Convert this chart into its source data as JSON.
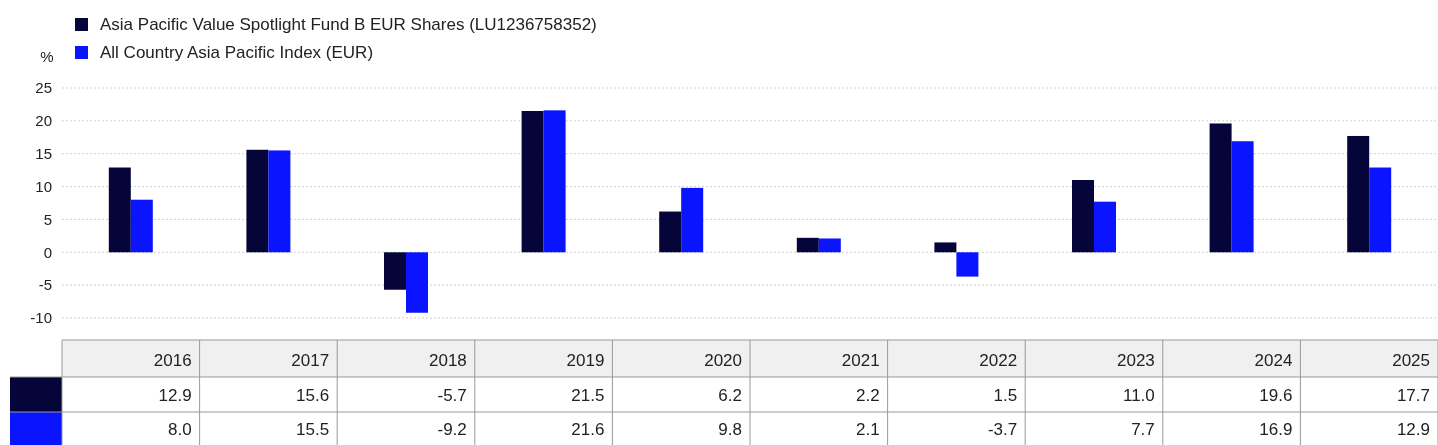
{
  "chart_data": {
    "type": "bar",
    "ylabel": "%",
    "categories": [
      "2016",
      "2017",
      "2018",
      "2019",
      "2020",
      "2021",
      "2022",
      "2023",
      "2024",
      "2025"
    ],
    "series": [
      {
        "name": "Asia Pacific Value Spotlight Fund B EUR Shares (LU1236758352)",
        "color": "#05053a",
        "values": [
          12.9,
          15.6,
          -5.7,
          21.5,
          6.2,
          2.2,
          1.5,
          11.0,
          19.6,
          17.7
        ],
        "value_labels": [
          "12.9",
          "15.6",
          "-5.7",
          "21.5",
          "6.2",
          "2.2",
          "1.5",
          "11.0",
          "19.6",
          "17.7"
        ]
      },
      {
        "name": "All Country Asia Pacific Index (EUR)",
        "color": "#0a14ff",
        "values": [
          8.0,
          15.5,
          -9.2,
          21.6,
          9.8,
          2.1,
          -3.7,
          7.7,
          16.9,
          12.9
        ],
        "value_labels": [
          "8.0",
          "15.5",
          "-9.2",
          "21.6",
          "9.8",
          "2.1",
          "-3.7",
          "7.7",
          "16.9",
          "12.9"
        ]
      }
    ],
    "ylim": [
      -10,
      25
    ],
    "yticks": [
      -10,
      -5,
      0,
      5,
      10,
      15,
      20,
      25
    ],
    "grid": "y",
    "legend": "top left"
  }
}
